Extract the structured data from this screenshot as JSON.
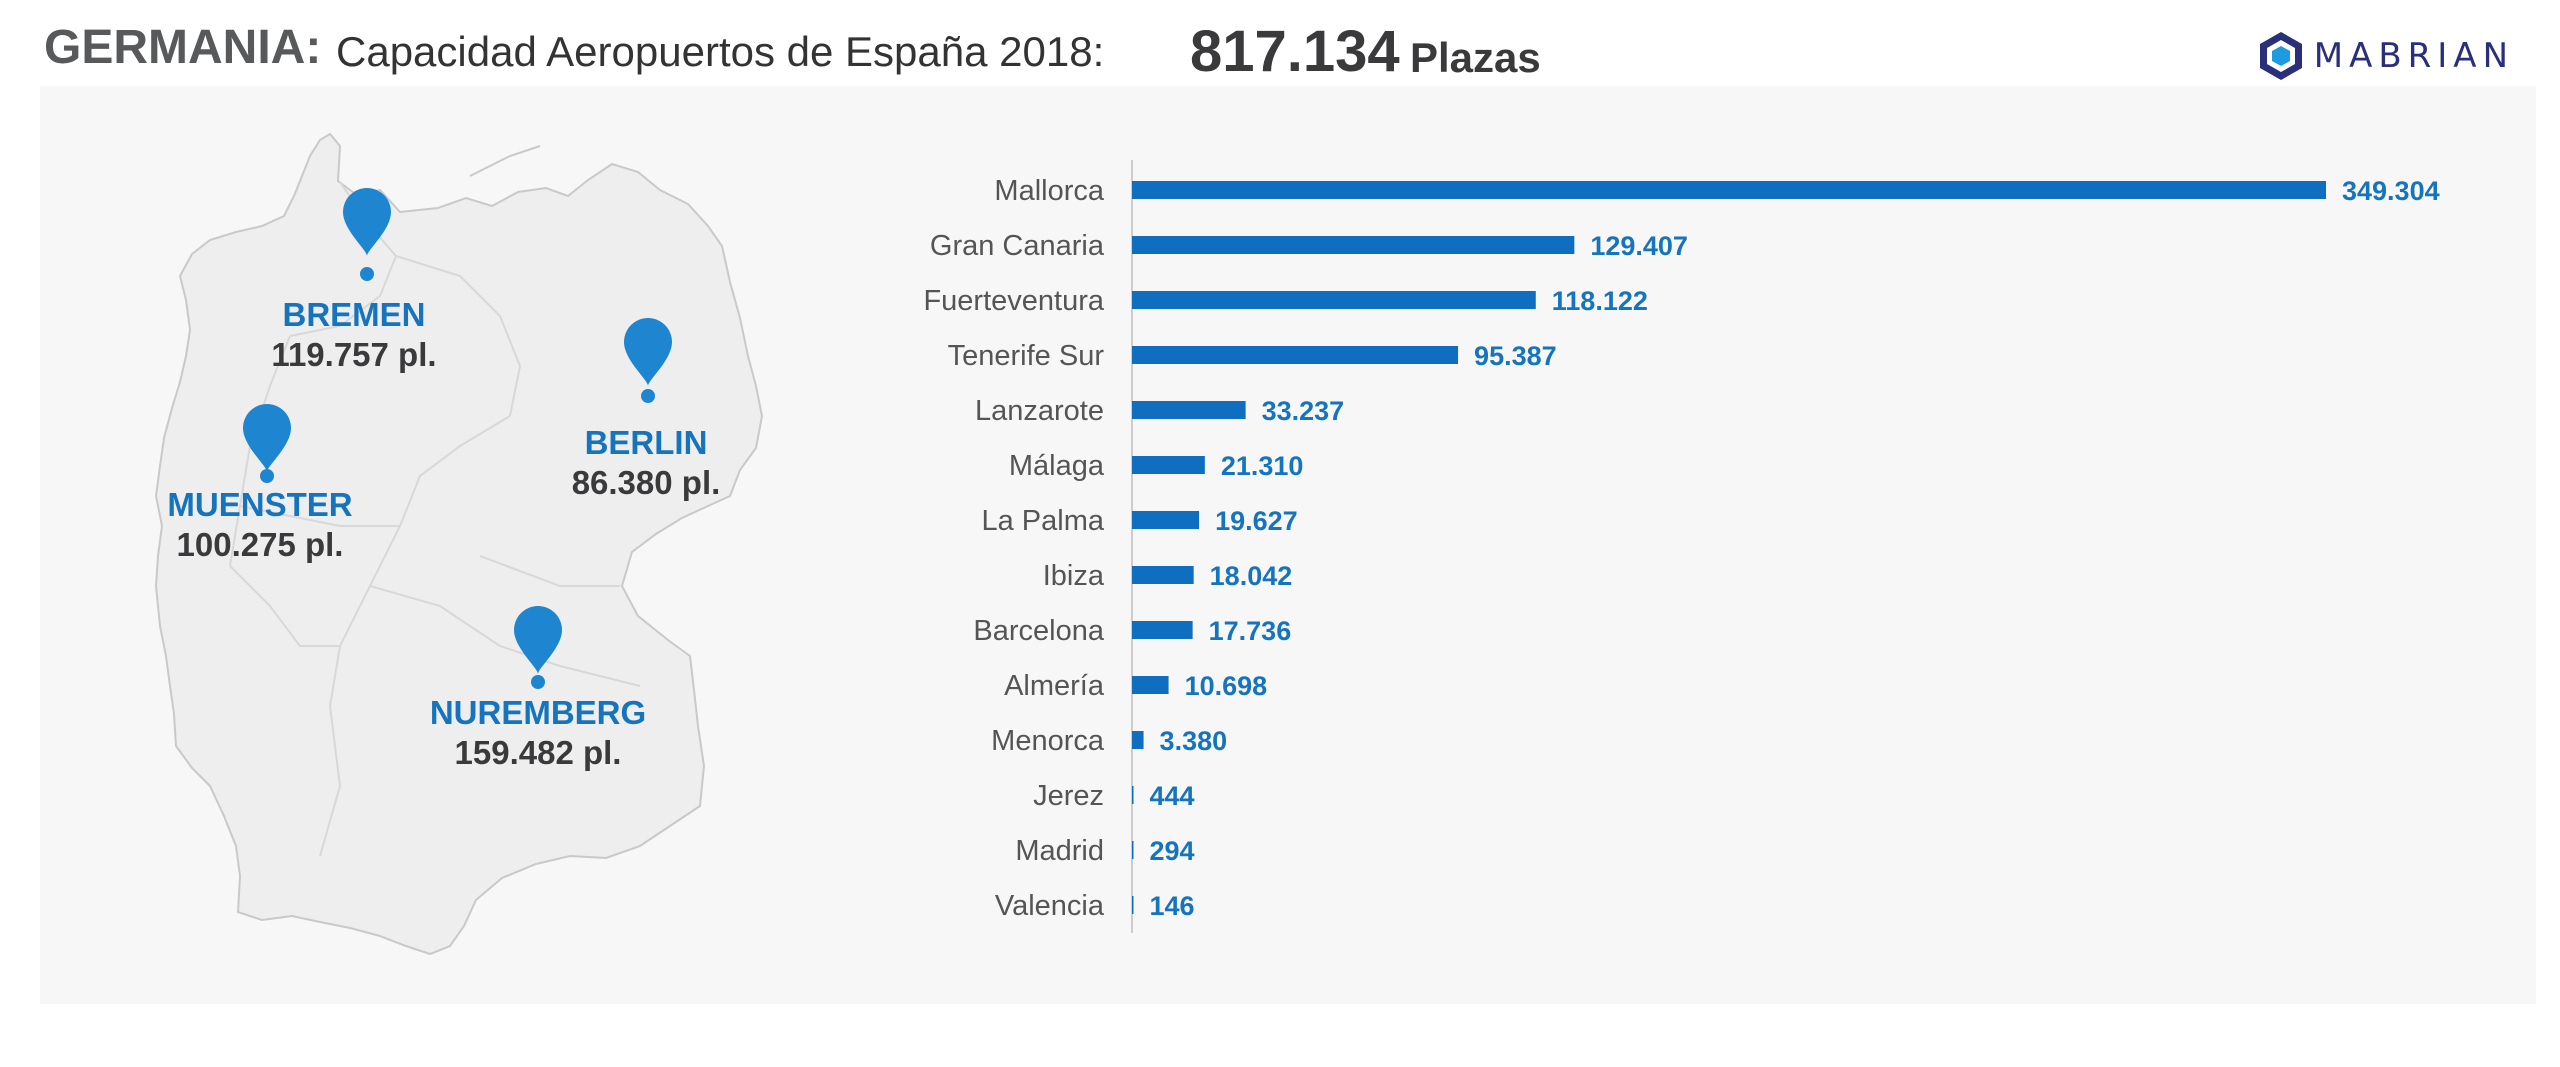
{
  "header": {
    "country": "GERMANIA:",
    "subtitle": "Capacidad Aeropuertos de España 2018:",
    "total": "817.134",
    "unit": "Plazas",
    "logo_text": "MABRIAN"
  },
  "map": {
    "cities": [
      {
        "name": "BREMEN",
        "capacity": "119.757 pl."
      },
      {
        "name": "BERLIN",
        "capacity": "86.380 pl."
      },
      {
        "name": "MUENSTER",
        "capacity": "100.275 pl."
      },
      {
        "name": "NUREMBERG",
        "capacity": "159.482 pl."
      }
    ]
  },
  "colors": {
    "bar": "#0f6ec0",
    "accent": "#1574bd",
    "panel": "#f7f7f7"
  },
  "chart_data": {
    "type": "bar",
    "orientation": "horizontal",
    "categories": [
      "Mallorca",
      "Gran Canaria",
      "Fuerteventura",
      "Tenerife Sur",
      "Lanzarote",
      "Málaga",
      "La Palma",
      "Ibiza",
      "Barcelona",
      "Almería",
      "Menorca",
      "Jerez",
      "Madrid",
      "Valencia"
    ],
    "values": [
      349304,
      129407,
      118122,
      95387,
      33237,
      21310,
      19627,
      18042,
      17736,
      10698,
      3380,
      444,
      294,
      146
    ],
    "value_labels": [
      "349.304",
      "129.407",
      "118.122",
      "95.387",
      "33.237",
      "21.310",
      "19.627",
      "18.042",
      "17.736",
      "10.698",
      "3.380",
      "444",
      "294",
      "146"
    ],
    "xlim": [
      0,
      349304
    ],
    "grid": false,
    "axis_ticks": false
  }
}
